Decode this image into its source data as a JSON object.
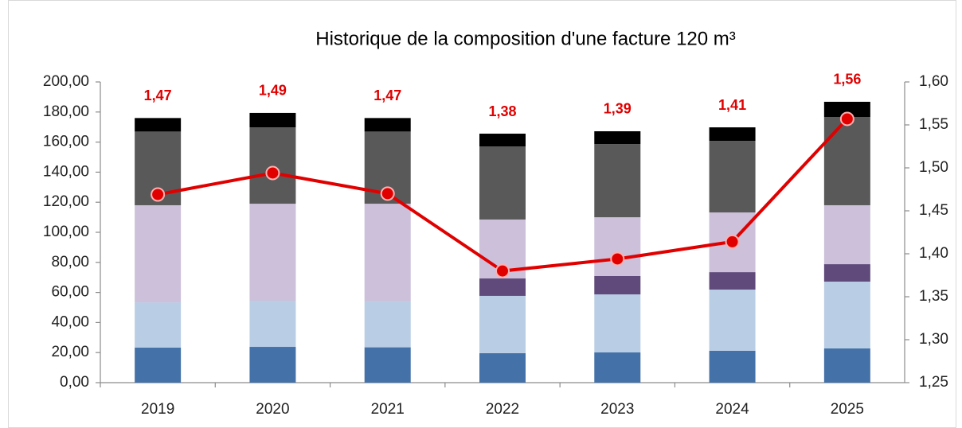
{
  "chart_data": {
    "type": "bar",
    "stacked": true,
    "title": "Historique de la composition d'une facture 120 m³",
    "categories": [
      "2019",
      "2020",
      "2021",
      "2022",
      "2023",
      "2024",
      "2025"
    ],
    "series": [
      {
        "color": "#4472a8",
        "values": [
          23.3,
          23.8,
          23.5,
          19.6,
          20.1,
          21.2,
          22.8
        ]
      },
      {
        "color": "#b9cde5",
        "values": [
          30.1,
          30.7,
          30.5,
          38.1,
          38.6,
          40.7,
          44.4
        ]
      },
      {
        "color": "#604a7b",
        "values": [
          0,
          0,
          0,
          11.6,
          12.2,
          11.6,
          11.6
        ]
      },
      {
        "color": "#ccc0da",
        "values": [
          64.6,
          64.5,
          65,
          39.2,
          39.1,
          39.7,
          39.2
        ]
      },
      {
        "color": "#595959",
        "values": [
          49,
          50.8,
          48,
          48.6,
          48.7,
          47.6,
          58.7
        ]
      },
      {
        "color": "#000000",
        "values": [
          9,
          9.6,
          9,
          8.5,
          8.5,
          9,
          10.1
        ]
      },
      {
        "type": "line",
        "axis": "y2",
        "color": "#e00000",
        "values": [
          1.469,
          1.494,
          1.47,
          1.38,
          1.394,
          1.414,
          1.557
        ],
        "value_labels": [
          "1,47",
          "1,49",
          "1,47",
          "1,38",
          "1,39",
          "1,41",
          "1,56"
        ]
      }
    ],
    "ylim": [
      0,
      200
    ],
    "yticks": [
      {
        "value": 0,
        "label": "0,00"
      },
      {
        "value": 20,
        "label": "20,00"
      },
      {
        "value": 40,
        "label": "40,00"
      },
      {
        "value": 60,
        "label": "60,00"
      },
      {
        "value": 80,
        "label": "80,00"
      },
      {
        "value": 100,
        "label": "100,00"
      },
      {
        "value": 120,
        "label": "120,00"
      },
      {
        "value": 140,
        "label": "140,00"
      },
      {
        "value": 160,
        "label": "160,00"
      },
      {
        "value": 180,
        "label": "180,00"
      },
      {
        "value": 200,
        "label": "200,00"
      }
    ],
    "y2lim": [
      1.25,
      1.6
    ],
    "y2ticks": [
      {
        "value": 1.25,
        "label": "1,25"
      },
      {
        "value": 1.3,
        "label": "1,30"
      },
      {
        "value": 1.35,
        "label": "1,35"
      },
      {
        "value": 1.4,
        "label": "1,40"
      },
      {
        "value": 1.45,
        "label": "1,45"
      },
      {
        "value": 1.5,
        "label": "1,50"
      },
      {
        "value": 1.55,
        "label": "1,55"
      },
      {
        "value": 1.6,
        "label": "1,60"
      }
    ],
    "grid": false
  }
}
